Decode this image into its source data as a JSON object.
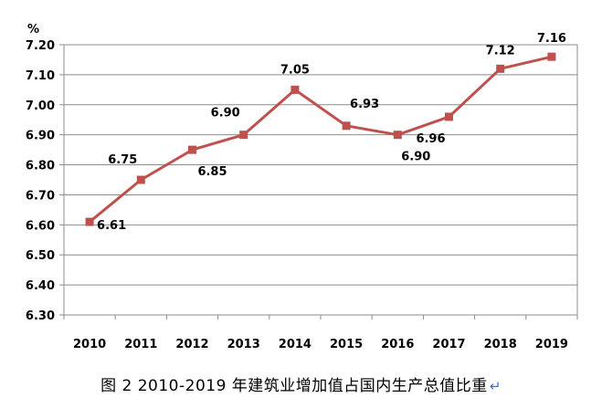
{
  "chart_data": {
    "type": "line",
    "x": [
      "2010",
      "2011",
      "2012",
      "2013",
      "2014",
      "2015",
      "2016",
      "2017",
      "2018",
      "2019"
    ],
    "series": [
      {
        "values": [
          6.61,
          6.75,
          6.85,
          6.9,
          7.05,
          6.93,
          6.9,
          6.96,
          7.12,
          7.16
        ]
      }
    ],
    "data_labels": [
      "6.61",
      "6.75",
      "6.85",
      "6.90",
      "7.05",
      "6.93",
      "6.90",
      "6.96",
      "7.12",
      "7.16"
    ],
    "y_ticks": [
      "6.30",
      "6.40",
      "6.50",
      "6.60",
      "6.70",
      "6.80",
      "6.90",
      "7.00",
      "7.10",
      "7.20"
    ],
    "ylabel": "%",
    "ylim": [
      6.3,
      7.2
    ],
    "grid": true,
    "line_color": "#c0504d",
    "marker": "square"
  },
  "caption": "图 2   2010-2019 年建筑业增加值占国内生产总值比重",
  "caption_mark": "↵"
}
